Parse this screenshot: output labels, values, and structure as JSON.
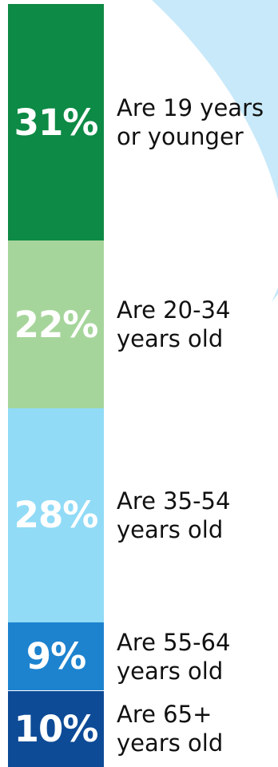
{
  "chart_data": {
    "type": "bar",
    "orientation": "stacked-vertical",
    "categories": [
      "Are 19 years\nor younger",
      "Are 20-34\nyears old",
      "Are 35-54\nyears old",
      "Are 55-64\nyears old",
      "Are 65+\nyears old"
    ],
    "values": [
      31,
      22,
      28,
      9,
      10
    ],
    "value_labels": [
      "31%",
      "22%",
      "28%",
      "9%",
      "10%"
    ],
    "colors": [
      "#0d8a45",
      "#a6d59b",
      "#91dbf6",
      "#1d83cf",
      "#0d4b97"
    ],
    "background_accent": "#c8e9f9",
    "legend": "none",
    "grid": false
  }
}
